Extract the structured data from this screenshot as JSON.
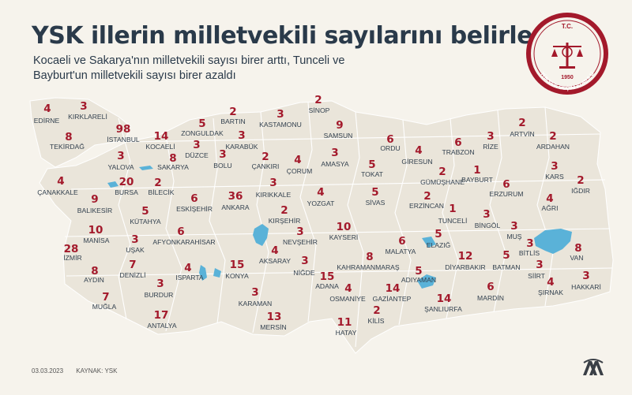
{
  "header": {
    "title": "YSK illerin milletvekili sayılarını belirledi",
    "subtitle_line1": "Kocaeli ve Sakarya'nın milletvekili sayısı birer arttı, Tunceli ve",
    "subtitle_line2": "Bayburt'un milletvekili sayısı birer azaldı"
  },
  "seal": {
    "top_text": "T.C.",
    "year": "1950",
    "ring_text": "YÜKSEK SEÇİM KURULU",
    "color": "#a3192b"
  },
  "footer": {
    "date": "03.03.2023",
    "source": "KAYNAK: YSK"
  },
  "logo": {
    "text": "AA",
    "color": "#3a3f46"
  },
  "colors": {
    "number": "#a3192b",
    "label": "#33414f",
    "map_fill": "#eae5da",
    "map_border": "#ffffff",
    "lake": "#5ab2d8"
  },
  "provinces": [
    {
      "name": "EDİRNE",
      "seats": 4
    },
    {
      "name": "KIRKLARELİ",
      "seats": 3
    },
    {
      "name": "TEKİRDAĞ",
      "seats": 8
    },
    {
      "name": "İSTANBUL",
      "seats": 98
    },
    {
      "name": "KOCAELİ",
      "seats": 14
    },
    {
      "name": "ZONGULDAK",
      "seats": 5
    },
    {
      "name": "BARTIN",
      "seats": 2
    },
    {
      "name": "KASTAMONU",
      "seats": 3
    },
    {
      "name": "SİNOP",
      "seats": 2
    },
    {
      "name": "SAMSUN",
      "seats": 9
    },
    {
      "name": "ORDU",
      "seats": 6
    },
    {
      "name": "TRABZON",
      "seats": 6
    },
    {
      "name": "RİZE",
      "seats": 3
    },
    {
      "name": "ARTVİN",
      "seats": 2
    },
    {
      "name": "ARDAHAN",
      "seats": 2
    },
    {
      "name": "KARABÜK",
      "seats": 3
    },
    {
      "name": "DÜZCE",
      "seats": 3
    },
    {
      "name": "BOLU",
      "seats": 3
    },
    {
      "name": "ÇANKIRI",
      "seats": 2
    },
    {
      "name": "ÇORUM",
      "seats": 4
    },
    {
      "name": "AMASYA",
      "seats": 3
    },
    {
      "name": "GİRESUN",
      "seats": 4
    },
    {
      "name": "GÜMÜŞHANE",
      "seats": 2
    },
    {
      "name": "BAYBURT",
      "seats": 1
    },
    {
      "name": "KARS",
      "seats": 3
    },
    {
      "name": "IĞDIR",
      "seats": 2
    },
    {
      "name": "YALOVA",
      "seats": 3
    },
    {
      "name": "SAKARYA",
      "seats": 8
    },
    {
      "name": "BURSA",
      "seats": 20
    },
    {
      "name": "BİLECİK",
      "seats": 2
    },
    {
      "name": "ÇANAKKALE",
      "seats": 4
    },
    {
      "name": "TOKAT",
      "seats": 5
    },
    {
      "name": "ERZURUM",
      "seats": 6
    },
    {
      "name": "AĞRI",
      "seats": 4
    },
    {
      "name": "BALIKESİR",
      "seats": 9
    },
    {
      "name": "ESKİŞEHİR",
      "seats": 6
    },
    {
      "name": "ANKARA",
      "seats": 36
    },
    {
      "name": "KIRIKKALE",
      "seats": 3
    },
    {
      "name": "YOZGAT",
      "seats": 4
    },
    {
      "name": "SİVAS",
      "seats": 5
    },
    {
      "name": "ERZİNCAN",
      "seats": 2
    },
    {
      "name": "TUNCELİ",
      "seats": 1
    },
    {
      "name": "KÜTAHYA",
      "seats": 5
    },
    {
      "name": "KIRŞEHİR",
      "seats": 2
    },
    {
      "name": "BİNGÖL",
      "seats": 3
    },
    {
      "name": "MUŞ",
      "seats": 3
    },
    {
      "name": "MANİSA",
      "seats": 10
    },
    {
      "name": "AFYONKARAHİSAR",
      "seats": 6
    },
    {
      "name": "NEVŞEHİR",
      "seats": 3
    },
    {
      "name": "KAYSERİ",
      "seats": 10
    },
    {
      "name": "İZMİR",
      "seats": 28
    },
    {
      "name": "UŞAK",
      "seats": 3
    },
    {
      "name": "AKSARAY",
      "seats": 4
    },
    {
      "name": "MALATYA",
      "seats": 6
    },
    {
      "name": "ELAZIĞ",
      "seats": 5
    },
    {
      "name": "BİTLİS",
      "seats": 3
    },
    {
      "name": "VAN",
      "seats": 8
    },
    {
      "name": "DENİZLİ",
      "seats": 7
    },
    {
      "name": "NİĞDE",
      "seats": 3
    },
    {
      "name": "KAHRAMANMARAŞ",
      "seats": 8
    },
    {
      "name": "DİYARBAKIR",
      "seats": 12
    },
    {
      "name": "BATMAN",
      "seats": 5
    },
    {
      "name": "SİİRT",
      "seats": 3
    },
    {
      "name": "HAKKARİ",
      "seats": 3
    },
    {
      "name": "AYDIN",
      "seats": 8
    },
    {
      "name": "ISPARTA",
      "seats": 4
    },
    {
      "name": "KONYA",
      "seats": 15
    },
    {
      "name": "ADIYAMAN",
      "seats": 5
    },
    {
      "name": "BURDUR",
      "seats": 3
    },
    {
      "name": "ADANA",
      "seats": 15
    },
    {
      "name": "ŞIRNAK",
      "seats": 4
    },
    {
      "name": "MUĞLA",
      "seats": 7
    },
    {
      "name": "KARAMAN",
      "seats": 3
    },
    {
      "name": "OSMANİYE",
      "seats": 4
    },
    {
      "name": "GAZİANTEP",
      "seats": 14
    },
    {
      "name": "ŞANLIURFA",
      "seats": 14
    },
    {
      "name": "MARDİN",
      "seats": 6
    },
    {
      "name": "ANTALYA",
      "seats": 17
    },
    {
      "name": "MERSİN",
      "seats": 13
    },
    {
      "name": "KİLİS",
      "seats": 2
    },
    {
      "name": "HATAY",
      "seats": 11
    }
  ]
}
